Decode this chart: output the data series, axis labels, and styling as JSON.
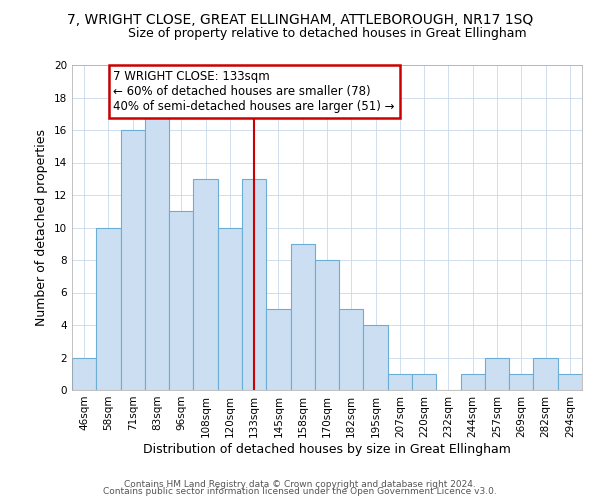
{
  "title": "7, WRIGHT CLOSE, GREAT ELLINGHAM, ATTLEBOROUGH, NR17 1SQ",
  "subtitle": "Size of property relative to detached houses in Great Ellingham",
  "xlabel": "Distribution of detached houses by size in Great Ellingham",
  "ylabel": "Number of detached properties",
  "bar_labels": [
    "46sqm",
    "58sqm",
    "71sqm",
    "83sqm",
    "96sqm",
    "108sqm",
    "120sqm",
    "133sqm",
    "145sqm",
    "158sqm",
    "170sqm",
    "182sqm",
    "195sqm",
    "207sqm",
    "220sqm",
    "232sqm",
    "244sqm",
    "257sqm",
    "269sqm",
    "282sqm",
    "294sqm"
  ],
  "bar_values": [
    2,
    10,
    16,
    17,
    11,
    13,
    10,
    13,
    5,
    9,
    8,
    5,
    4,
    1,
    1,
    0,
    1,
    2,
    1,
    2,
    1
  ],
  "bar_color": "#ccdff2",
  "bar_edge_color": "#6aaed6",
  "vline_x_idx": 7,
  "vline_color": "#cc0000",
  "ylim": [
    0,
    20
  ],
  "yticks": [
    0,
    2,
    4,
    6,
    8,
    10,
    12,
    14,
    16,
    18,
    20
  ],
  "annotation_title": "7 WRIGHT CLOSE: 133sqm",
  "annotation_line1": "← 60% of detached houses are smaller (78)",
  "annotation_line2": "40% of semi-detached houses are larger (51) →",
  "annotation_box_color": "#ffffff",
  "annotation_box_edge": "#cc0000",
  "footer1": "Contains HM Land Registry data © Crown copyright and database right 2024.",
  "footer2": "Contains public sector information licensed under the Open Government Licence v3.0.",
  "background_color": "#ffffff",
  "grid_color": "#c8d8ea",
  "title_fontsize": 10,
  "subtitle_fontsize": 9,
  "axis_label_fontsize": 9,
  "tick_fontsize": 7.5,
  "annotation_fontsize": 8.5,
  "footer_fontsize": 6.5
}
